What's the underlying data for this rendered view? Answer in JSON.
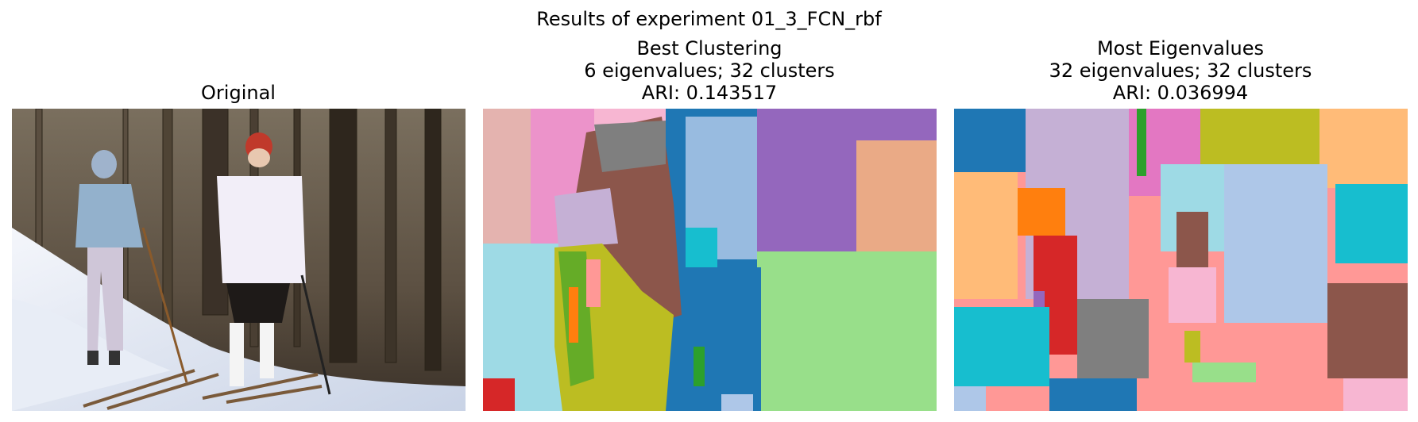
{
  "figure": {
    "suptitle": "Results of experiment 01_3_FCN_rbf"
  },
  "panels": [
    {
      "title_lines": [
        "Original"
      ],
      "kind": "photo"
    },
    {
      "title_lines": [
        "Best Clustering",
        "6 eigenvalues; 32 clusters",
        "ARI: 0.143517"
      ],
      "kind": "segmentation",
      "palette": [
        "#e377c2",
        "#8c564b",
        "#1f77b4",
        "#aec7e8",
        "#9467bd",
        "#ffbb78",
        "#98df8a",
        "#bcbd22",
        "#dbdb8d",
        "#ff9896",
        "#17becf",
        "#7f7f7f",
        "#c5b0d5",
        "#ff7f0e",
        "#2ca02c",
        "#d62728",
        "#9edae5",
        "#f7b6d2"
      ]
    },
    {
      "title_lines": [
        "Most Eigenvalues",
        "32 eigenvalues; 32 clusters",
        "ARI: 0.036994"
      ],
      "kind": "segmentation",
      "palette": [
        "#1f77b4",
        "#c5b0d5",
        "#e377c2",
        "#bcbd22",
        "#ffbb78",
        "#ff9896",
        "#ff7f0e",
        "#9edae5",
        "#aec7e8",
        "#17becf",
        "#8c564b",
        "#d62728",
        "#7f7f7f",
        "#9467bd",
        "#2ca02c",
        "#98df8a",
        "#f7b6d2"
      ]
    }
  ]
}
